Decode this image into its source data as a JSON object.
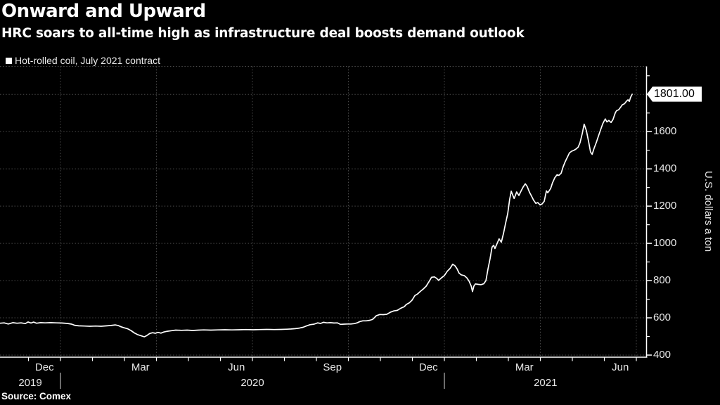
{
  "header": {
    "title": "Onward and Upward",
    "subtitle": "HRC soars to all-time high as infrastructure deal boosts demand outlook"
  },
  "legend": {
    "label": "Hot-rolled coil, July 2021 contract",
    "swatch_color": "#ffffff"
  },
  "source": "Source: Comex",
  "colors": {
    "background": "#000000",
    "line": "#ffffff",
    "grid": "#4a4a4a",
    "axis": "#ffffff",
    "tick_text": "#e8e8e8",
    "flag_bg": "#ffffff",
    "flag_text": "#000000"
  },
  "chart_data": {
    "type": "line",
    "title": "Onward and Upward",
    "subtitle": "HRC soars to all-time high as infrastructure deal boosts demand outlook",
    "series_name": "Hot-rolled coil, July 2021 contract",
    "grid": "on",
    "y_axis": {
      "title": "U.S. dollars a ton",
      "tick_values": [
        400,
        600,
        800,
        1000,
        1200,
        1400,
        1600,
        1800
      ],
      "visible_labels": [
        "400",
        "600",
        "800",
        "1000",
        "1200",
        "1400",
        "1600"
      ],
      "minor_tick_values": [
        500,
        700,
        900,
        1100,
        1300,
        1500,
        1700,
        1900
      ],
      "ylim": [
        400,
        1950
      ]
    },
    "x_axis": {
      "note": "m = months since Dec 1 2019; axis spans m -0.89 to 19.3",
      "month_labels": [
        {
          "label": "Dec",
          "m": 0
        },
        {
          "label": "Mar",
          "m": 3
        },
        {
          "label": "Jun",
          "m": 6
        },
        {
          "label": "Sep",
          "m": 9
        },
        {
          "label": "Dec",
          "m": 12
        },
        {
          "label": "Mar",
          "m": 15
        },
        {
          "label": "Jun",
          "m": 18
        }
      ],
      "year_labels": [
        {
          "label": "2019",
          "m_start": -0.89,
          "m_end": 1
        },
        {
          "label": "2020",
          "m_start": 1,
          "m_end": 13
        },
        {
          "label": "2021",
          "m_start": 13,
          "m_end": 19.33
        }
      ],
      "quarter_gridlines_m": [
        1,
        4,
        7,
        10,
        13,
        16,
        19
      ],
      "month_ticks_m": [
        0,
        1,
        2,
        3,
        4,
        5,
        6,
        7,
        8,
        9,
        10,
        11,
        12,
        13,
        14,
        15,
        16,
        17,
        18,
        19
      ],
      "year_divider_m": [
        1,
        13
      ]
    },
    "last_point": {
      "label": "1801.00",
      "value": 1801
    },
    "points": [
      [
        -0.89,
        571
      ],
      [
        -0.76,
        573
      ],
      [
        -0.63,
        567
      ],
      [
        -0.49,
        574
      ],
      [
        -0.36,
        571
      ],
      [
        -0.23,
        573
      ],
      [
        -0.1,
        569
      ],
      [
        -0.01,
        578
      ],
      [
        0.08,
        572
      ],
      [
        0.16,
        577
      ],
      [
        0.25,
        571
      ],
      [
        0.38,
        574
      ],
      [
        0.52,
        573
      ],
      [
        0.69,
        574
      ],
      [
        0.87,
        573
      ],
      [
        1.04,
        572
      ],
      [
        1.22,
        570
      ],
      [
        1.35,
        566
      ],
      [
        1.44,
        560
      ],
      [
        1.57,
        557
      ],
      [
        1.75,
        556
      ],
      [
        1.92,
        555
      ],
      [
        2.1,
        556
      ],
      [
        2.27,
        555
      ],
      [
        2.45,
        557
      ],
      [
        2.58,
        559
      ],
      [
        2.71,
        562
      ],
      [
        2.8,
        559
      ],
      [
        2.89,
        552
      ],
      [
        2.98,
        547
      ],
      [
        3.09,
        542
      ],
      [
        3.2,
        532
      ],
      [
        3.31,
        519
      ],
      [
        3.42,
        509
      ],
      [
        3.53,
        503
      ],
      [
        3.62,
        498
      ],
      [
        3.7,
        505
      ],
      [
        3.79,
        516
      ],
      [
        3.88,
        520
      ],
      [
        3.97,
        517
      ],
      [
        4.05,
        522
      ],
      [
        4.14,
        518
      ],
      [
        4.23,
        524
      ],
      [
        4.34,
        528
      ],
      [
        4.47,
        531
      ],
      [
        4.6,
        534
      ],
      [
        4.78,
        533
      ],
      [
        4.96,
        534
      ],
      [
        5.13,
        532
      ],
      [
        5.31,
        534
      ],
      [
        5.48,
        535
      ],
      [
        5.7,
        534
      ],
      [
        5.92,
        535
      ],
      [
        6.14,
        536
      ],
      [
        6.36,
        535
      ],
      [
        6.58,
        536
      ],
      [
        6.8,
        537
      ],
      [
        7.02,
        536
      ],
      [
        7.24,
        537
      ],
      [
        7.46,
        538
      ],
      [
        7.68,
        537
      ],
      [
        7.9,
        538
      ],
      [
        8.08,
        539
      ],
      [
        8.21,
        540
      ],
      [
        8.34,
        542
      ],
      [
        8.47,
        545
      ],
      [
        8.58,
        549
      ],
      [
        8.71,
        558
      ],
      [
        8.8,
        563
      ],
      [
        8.93,
        566
      ],
      [
        9.04,
        573
      ],
      [
        9.13,
        570
      ],
      [
        9.22,
        576
      ],
      [
        9.33,
        573
      ],
      [
        9.44,
        574
      ],
      [
        9.55,
        572
      ],
      [
        9.66,
        573
      ],
      [
        9.75,
        565
      ],
      [
        9.86,
        566
      ],
      [
        9.97,
        567
      ],
      [
        10.08,
        567
      ],
      [
        10.19,
        569
      ],
      [
        10.27,
        573
      ],
      [
        10.36,
        580
      ],
      [
        10.45,
        584
      ],
      [
        10.56,
        584
      ],
      [
        10.67,
        587
      ],
      [
        10.76,
        592
      ],
      [
        10.87,
        611
      ],
      [
        10.98,
        618
      ],
      [
        11.09,
        617
      ],
      [
        11.2,
        619
      ],
      [
        11.31,
        630
      ],
      [
        11.42,
        637
      ],
      [
        11.53,
        640
      ],
      [
        11.64,
        652
      ],
      [
        11.75,
        660
      ],
      [
        11.81,
        672
      ],
      [
        11.9,
        680
      ],
      [
        11.99,
        695
      ],
      [
        12.08,
        720
      ],
      [
        12.16,
        728
      ],
      [
        12.25,
        742
      ],
      [
        12.34,
        755
      ],
      [
        12.43,
        770
      ],
      [
        12.52,
        795
      ],
      [
        12.6,
        818
      ],
      [
        12.69,
        820
      ],
      [
        12.76,
        812
      ],
      [
        12.82,
        801
      ],
      [
        12.91,
        815
      ],
      [
        13.0,
        827
      ],
      [
        13.09,
        850
      ],
      [
        13.18,
        866
      ],
      [
        13.26,
        888
      ],
      [
        13.33,
        880
      ],
      [
        13.4,
        862
      ],
      [
        13.46,
        840
      ],
      [
        13.53,
        831
      ],
      [
        13.62,
        827
      ],
      [
        13.7,
        815
      ],
      [
        13.77,
        798
      ],
      [
        13.84,
        770
      ],
      [
        13.88,
        741
      ],
      [
        13.92,
        770
      ],
      [
        13.97,
        782
      ],
      [
        14.05,
        780
      ],
      [
        14.14,
        778
      ],
      [
        14.23,
        783
      ],
      [
        14.3,
        800
      ],
      [
        14.36,
        860
      ],
      [
        14.43,
        920
      ],
      [
        14.49,
        980
      ],
      [
        14.54,
        990
      ],
      [
        14.58,
        972
      ],
      [
        14.65,
        1000
      ],
      [
        14.71,
        1024
      ],
      [
        14.78,
        1006
      ],
      [
        14.85,
        1055
      ],
      [
        14.91,
        1105
      ],
      [
        14.98,
        1160
      ],
      [
        15.04,
        1235
      ],
      [
        15.09,
        1280
      ],
      [
        15.13,
        1262
      ],
      [
        15.18,
        1241
      ],
      [
        15.22,
        1258
      ],
      [
        15.26,
        1276
      ],
      [
        15.33,
        1257
      ],
      [
        15.4,
        1282
      ],
      [
        15.46,
        1302
      ],
      [
        15.53,
        1320
      ],
      [
        15.59,
        1305
      ],
      [
        15.66,
        1275
      ],
      [
        15.73,
        1252
      ],
      [
        15.79,
        1232
      ],
      [
        15.86,
        1215
      ],
      [
        15.92,
        1219
      ],
      [
        15.99,
        1207
      ],
      [
        16.05,
        1211
      ],
      [
        16.12,
        1226
      ],
      [
        16.19,
        1282
      ],
      [
        16.23,
        1272
      ],
      [
        16.27,
        1281
      ],
      [
        16.32,
        1294
      ],
      [
        16.38,
        1325
      ],
      [
        16.45,
        1352
      ],
      [
        16.52,
        1368
      ],
      [
        16.58,
        1365
      ],
      [
        16.65,
        1377
      ],
      [
        16.71,
        1410
      ],
      [
        16.78,
        1440
      ],
      [
        16.85,
        1465
      ],
      [
        16.91,
        1486
      ],
      [
        16.98,
        1495
      ],
      [
        17.04,
        1499
      ],
      [
        17.11,
        1506
      ],
      [
        17.18,
        1516
      ],
      [
        17.24,
        1540
      ],
      [
        17.31,
        1590
      ],
      [
        17.37,
        1640
      ],
      [
        17.44,
        1605
      ],
      [
        17.51,
        1545
      ],
      [
        17.57,
        1490
      ],
      [
        17.62,
        1478
      ],
      [
        17.68,
        1510
      ],
      [
        17.75,
        1542
      ],
      [
        17.81,
        1574
      ],
      [
        17.88,
        1608
      ],
      [
        17.95,
        1642
      ],
      [
        17.99,
        1655
      ],
      [
        18.03,
        1668
      ],
      [
        18.08,
        1652
      ],
      [
        18.14,
        1660
      ],
      [
        18.21,
        1649
      ],
      [
        18.27,
        1665
      ],
      [
        18.34,
        1700
      ],
      [
        18.38,
        1712
      ],
      [
        18.45,
        1718
      ],
      [
        18.52,
        1734
      ],
      [
        18.56,
        1744
      ],
      [
        18.63,
        1750
      ],
      [
        18.69,
        1763
      ],
      [
        18.74,
        1771
      ],
      [
        18.78,
        1762
      ],
      [
        18.82,
        1784
      ],
      [
        18.87,
        1801
      ]
    ]
  }
}
